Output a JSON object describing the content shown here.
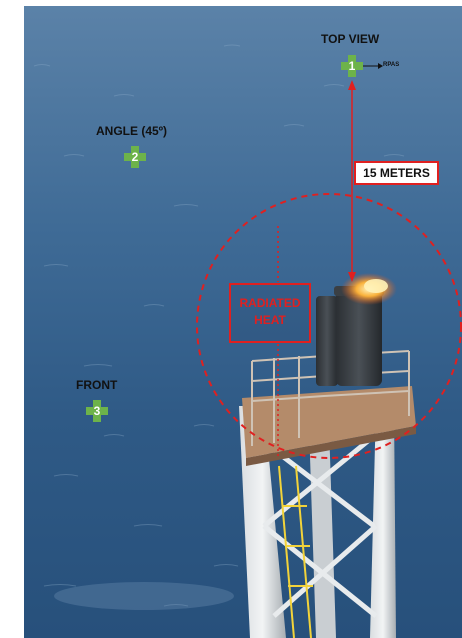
{
  "labels": {
    "top_view": "TOP VIEW",
    "angle": "ANGLE (45º)",
    "front": "FRONT",
    "rpas": "RPAS",
    "distance": "15 METERS",
    "radiated_heat_line1": "RADIATED",
    "radiated_heat_line2": "HEAT"
  },
  "markers": [
    {
      "number": "1",
      "label": "TOP VIEW"
    },
    {
      "number": "2",
      "label": "ANGLE (45º)"
    },
    {
      "number": "3",
      "label": "FRONT"
    }
  ],
  "colors": {
    "sea_deep": "#27507b",
    "sea_light": "#5b82a8",
    "annotation_red": "#e02020",
    "marker_green": "#6db34a",
    "flame_orange": "#f39a2a"
  }
}
